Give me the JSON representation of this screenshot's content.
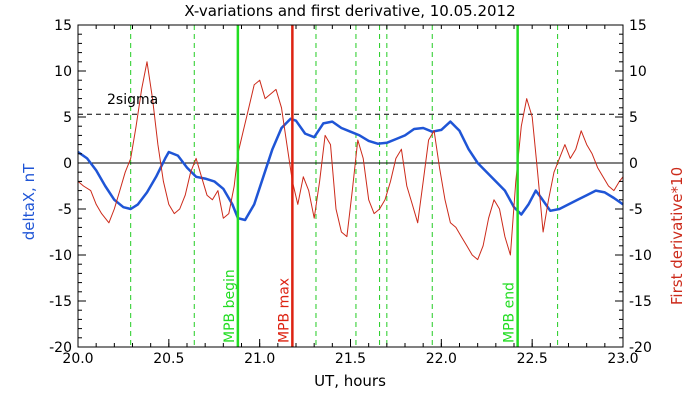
{
  "chart_data": {
    "type": "line",
    "title": "X-variations and first derivative, 10.05.2012",
    "xlabel": "UT, hours",
    "ylabel_left": "deltaX, nT",
    "ylabel_right": "First derivative*10",
    "xlim": [
      20.0,
      23.0
    ],
    "ylim": [
      -20,
      15
    ],
    "x_ticks": [
      "20.0",
      "20.5",
      "21.0",
      "21.5",
      "22.0",
      "22.5",
      "23.0"
    ],
    "y_ticks": [
      -20,
      -15,
      -10,
      -5,
      0,
      5,
      10,
      15
    ],
    "colors": {
      "deltaX": "#1f55d6",
      "derivative": "#cc2a1a",
      "mpb_line": "#22dd22",
      "max_line": "#dd2211",
      "dashed_green": "#22cc22",
      "threshold": "#000000"
    },
    "threshold": {
      "label": "2sigma",
      "value": 5.3
    },
    "zero_line": 0,
    "vertical_dashed": [
      20.29,
      20.64,
      21.31,
      21.53,
      21.66,
      21.7,
      21.95,
      22.64
    ],
    "markers": [
      {
        "x": 20.88,
        "label": "MPB begin",
        "color": "#22dd22"
      },
      {
        "x": 21.18,
        "label": "MPB max",
        "color": "#dd2211"
      },
      {
        "x": 22.42,
        "label": "MPB end",
        "color": "#22dd22"
      }
    ],
    "series": [
      {
        "name": "deltaX",
        "axis": "left",
        "x": [
          20.0,
          20.05,
          20.1,
          20.15,
          20.2,
          20.25,
          20.29,
          20.33,
          20.38,
          20.43,
          20.48,
          20.5,
          20.55,
          20.6,
          20.65,
          20.7,
          20.75,
          20.8,
          20.85,
          20.88,
          20.92,
          20.97,
          21.02,
          21.07,
          21.12,
          21.17,
          21.2,
          21.25,
          21.3,
          21.35,
          21.4,
          21.45,
          21.5,
          21.55,
          21.6,
          21.65,
          21.7,
          21.75,
          21.8,
          21.85,
          21.9,
          21.95,
          22.0,
          22.05,
          22.1,
          22.15,
          22.2,
          22.25,
          22.3,
          22.35,
          22.4,
          22.44,
          22.48,
          22.52,
          22.55,
          22.6,
          22.65,
          22.7,
          22.75,
          22.8,
          22.85,
          22.9,
          22.95,
          23.0
        ],
        "y": [
          1.2,
          0.5,
          -0.8,
          -2.5,
          -4.0,
          -4.8,
          -5.0,
          -4.5,
          -3.2,
          -1.5,
          0.5,
          1.2,
          0.8,
          -0.5,
          -1.5,
          -1.7,
          -2.0,
          -2.8,
          -4.5,
          -6.0,
          -6.2,
          -4.5,
          -1.5,
          1.5,
          3.8,
          4.8,
          4.6,
          3.2,
          2.8,
          4.3,
          4.5,
          3.8,
          3.4,
          3.0,
          2.4,
          2.1,
          2.2,
          2.6,
          3.0,
          3.7,
          3.8,
          3.4,
          3.6,
          4.5,
          3.5,
          1.5,
          0.0,
          -1.0,
          -2.0,
          -3.0,
          -4.8,
          -5.6,
          -4.5,
          -3.0,
          -3.8,
          -5.2,
          -5.0,
          -4.5,
          -4.0,
          -3.5,
          -3.0,
          -3.2,
          -3.8,
          -4.5
        ]
      },
      {
        "name": "First derivative*10",
        "axis": "right",
        "x": [
          20.0,
          20.03,
          20.07,
          20.1,
          20.13,
          20.17,
          20.2,
          20.23,
          20.26,
          20.29,
          20.32,
          20.35,
          20.38,
          20.41,
          20.44,
          20.47,
          20.5,
          20.53,
          20.56,
          20.59,
          20.62,
          20.65,
          20.68,
          20.71,
          20.74,
          20.77,
          20.8,
          20.83,
          20.86,
          20.88,
          20.91,
          20.94,
          20.97,
          21.0,
          21.03,
          21.06,
          21.09,
          21.12,
          21.15,
          21.18,
          21.21,
          21.24,
          21.27,
          21.3,
          21.33,
          21.36,
          21.39,
          21.42,
          21.45,
          21.48,
          21.51,
          21.54,
          21.57,
          21.6,
          21.63,
          21.66,
          21.69,
          21.72,
          21.75,
          21.78,
          21.81,
          21.84,
          21.87,
          21.9,
          21.93,
          21.96,
          21.99,
          22.02,
          22.05,
          22.08,
          22.11,
          22.14,
          22.17,
          22.2,
          22.23,
          22.26,
          22.29,
          22.32,
          22.35,
          22.38,
          22.41,
          22.44,
          22.47,
          22.5,
          22.53,
          22.56,
          22.59,
          22.62,
          22.65,
          22.68,
          22.71,
          22.74,
          22.77,
          22.8,
          22.83,
          22.86,
          22.89,
          22.92,
          22.95,
          22.98,
          23.0
        ],
        "y": [
          -2.0,
          -2.5,
          -3.0,
          -4.5,
          -5.5,
          -6.5,
          -5.0,
          -3.0,
          -1.0,
          0.5,
          4.0,
          8.0,
          11.0,
          7.0,
          2.0,
          -2.0,
          -4.5,
          -5.5,
          -5.0,
          -3.5,
          -1.0,
          0.5,
          -1.5,
          -3.5,
          -4.0,
          -3.0,
          -6.0,
          -5.5,
          -2.5,
          1.0,
          3.5,
          6.0,
          8.5,
          9.0,
          7.0,
          7.5,
          8.0,
          6.0,
          2.0,
          -2.0,
          -4.5,
          -1.5,
          -3.0,
          -6.0,
          -2.0,
          3.0,
          2.0,
          -5.0,
          -7.5,
          -8.0,
          -3.0,
          2.5,
          0.5,
          -4.0,
          -5.5,
          -5.0,
          -4.0,
          -2.0,
          0.5,
          1.5,
          -2.5,
          -4.5,
          -6.5,
          -2.0,
          2.5,
          3.5,
          -0.5,
          -4.0,
          -6.5,
          -7.0,
          -8.0,
          -9.0,
          -10.0,
          -10.5,
          -9.0,
          -6.0,
          -4.0,
          -5.0,
          -8.0,
          -10.0,
          -2.0,
          4.0,
          7.0,
          5.0,
          -1.0,
          -7.5,
          -4.0,
          -1.0,
          0.5,
          2.0,
          0.5,
          1.5,
          3.5,
          2.0,
          1.0,
          -0.5,
          -1.5,
          -2.5,
          -3.0,
          -2.0,
          -1.5
        ]
      }
    ]
  }
}
